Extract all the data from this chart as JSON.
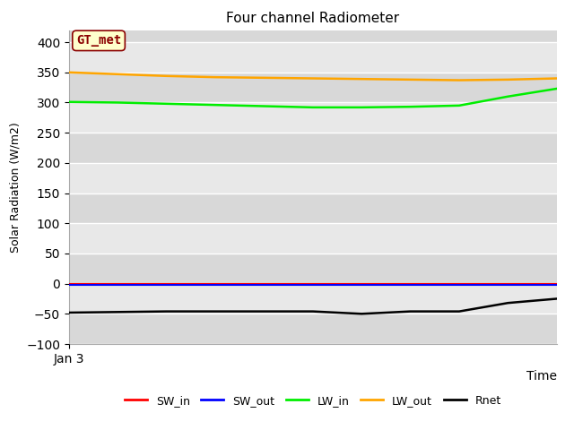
{
  "title": "Four channel Radiometer",
  "xlabel": "Time",
  "ylabel": "Solar Radiation (W/m2)",
  "x_tick_label": "Jan 3",
  "annotation_text": "GT_met",
  "annotation_text_color": "#8B0000",
  "annotation_bg_color": "#FFFFCC",
  "annotation_border_color": "#8B0000",
  "bg_color": "#E8E8E8",
  "bg_bands": [
    {
      "ymin": -100,
      "ymax": -50,
      "color": "#D8D8D8"
    },
    {
      "ymin": -50,
      "ymax": 0,
      "color": "#E8E8E8"
    },
    {
      "ymin": 0,
      "ymax": 50,
      "color": "#D8D8D8"
    },
    {
      "ymin": 50,
      "ymax": 100,
      "color": "#E8E8E8"
    },
    {
      "ymin": 100,
      "ymax": 150,
      "color": "#D8D8D8"
    },
    {
      "ymin": 150,
      "ymax": 200,
      "color": "#E8E8E8"
    },
    {
      "ymin": 200,
      "ymax": 250,
      "color": "#D8D8D8"
    },
    {
      "ymin": 250,
      "ymax": 300,
      "color": "#E8E8E8"
    },
    {
      "ymin": 300,
      "ymax": 350,
      "color": "#D8D8D8"
    },
    {
      "ymin": 350,
      "ymax": 400,
      "color": "#E8E8E8"
    },
    {
      "ymin": 400,
      "ymax": 420,
      "color": "#D8D8D8"
    }
  ],
  "ylim": [
    -100,
    420
  ],
  "yticks": [
    -100,
    -50,
    0,
    50,
    100,
    150,
    200,
    250,
    300,
    350,
    400
  ],
  "series": {
    "SW_in": {
      "color": "#FF0000",
      "values": [
        0,
        0,
        0,
        0,
        0,
        0,
        0,
        0,
        0,
        0,
        0
      ],
      "linewidth": 1.5
    },
    "SW_out": {
      "color": "#0000FF",
      "values": [
        -2,
        -2,
        -2,
        -2,
        -2,
        -2,
        -2,
        -2,
        -2,
        -2,
        -2
      ],
      "linewidth": 1.5
    },
    "LW_in": {
      "color": "#00EE00",
      "values": [
        301,
        300,
        298,
        296,
        294,
        292,
        292,
        293,
        295,
        310,
        323
      ],
      "linewidth": 1.8
    },
    "LW_out": {
      "color": "#FFA500",
      "values": [
        350,
        347,
        344,
        342,
        341,
        340,
        339,
        338,
        337,
        338,
        340
      ],
      "linewidth": 1.8
    },
    "Rnet": {
      "color": "#000000",
      "values": [
        -48,
        -47,
        -46,
        -46,
        -46,
        -46,
        -50,
        -46,
        -46,
        -32,
        -25
      ],
      "linewidth": 1.8
    }
  },
  "legend_entries": [
    "SW_in",
    "SW_out",
    "LW_in",
    "LW_out",
    "Rnet"
  ],
  "legend_colors": [
    "#FF0000",
    "#0000FF",
    "#00EE00",
    "#FFA500",
    "#000000"
  ]
}
